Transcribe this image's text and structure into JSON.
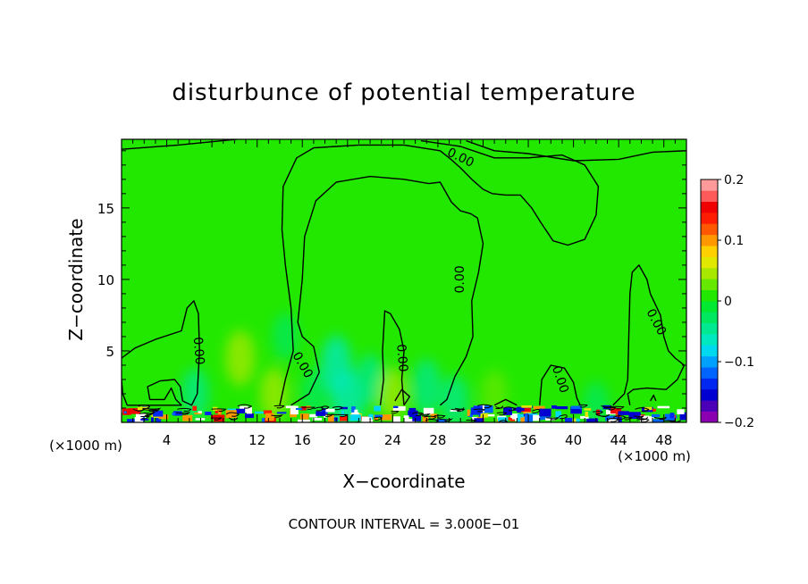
{
  "chart_data": {
    "type": "heatmap",
    "title": "disturbunce of potential temperature",
    "xlabel": "X−coordinate",
    "ylabel": "Z−coordinate",
    "x_unit_left": "(×1000 m)",
    "x_unit_right": "(×1000 m)",
    "xlim": [
      0,
      50
    ],
    "ylim": [
      0,
      19.8
    ],
    "x_ticks": [
      4,
      8,
      12,
      16,
      20,
      24,
      28,
      32,
      36,
      40,
      44,
      48
    ],
    "y_ticks": [
      5,
      10,
      15
    ],
    "contour_label": "0.00",
    "contour_interval_text": "CONTOUR INTERVAL = 3.000E−01",
    "colorbar": {
      "min": -0.2,
      "max": 0.2,
      "tick_values": [
        0.2,
        0.1,
        0,
        -0.1,
        -0.2
      ],
      "tick_labels": [
        "0.2",
        "0.1",
        "0",
        "−0.1",
        "−0.2"
      ],
      "colors": [
        "#8b00b0",
        "#4b00b8",
        "#0000d0",
        "#0028f0",
        "#0064ff",
        "#00a0ff",
        "#00d8f0",
        "#00e8c0",
        "#00e890",
        "#00e860",
        "#00e830",
        "#22e800",
        "#66e800",
        "#a8e800",
        "#e0e800",
        "#ffd000",
        "#ff9800",
        "#ff5800",
        "#ff1c00",
        "#f00000",
        "#ff5a5a",
        "#ff9a9a"
      ]
    },
    "background_value": 0.01,
    "blobs": [
      {
        "x": 6.5,
        "z": 2.0,
        "value": -0.04
      },
      {
        "x": 10.5,
        "z": 4.5,
        "value": 0.05
      },
      {
        "x": 13.5,
        "z": 2.0,
        "value": 0.04
      },
      {
        "x": 14.5,
        "z": 6.0,
        "value": -0.03
      },
      {
        "x": 19.0,
        "z": 4.0,
        "value": -0.06
      },
      {
        "x": 20.0,
        "z": 1.5,
        "value": -0.07
      },
      {
        "x": 17.0,
        "z": 2.0,
        "value": -0.03
      },
      {
        "x": 22.0,
        "z": 3.0,
        "value": -0.04
      },
      {
        "x": 24.0,
        "z": 2.0,
        "value": 0.04
      },
      {
        "x": 27.0,
        "z": 2.5,
        "value": -0.05
      },
      {
        "x": 29.5,
        "z": 1.5,
        "value": -0.04
      },
      {
        "x": 33.0,
        "z": 2.0,
        "value": 0.03
      },
      {
        "x": 42.0,
        "z": 1.2,
        "value": -0.03
      }
    ],
    "contours": [
      [
        [
          0.0,
          19.1
        ],
        [
          5.0,
          19.4
        ],
        [
          10.2,
          19.8
        ]
      ],
      [
        [
          0.0,
          4.5
        ],
        [
          1.2,
          5.2
        ],
        [
          3.0,
          5.8
        ],
        [
          5.3,
          6.4
        ],
        [
          5.8,
          8.0
        ],
        [
          6.4,
          8.5
        ],
        [
          6.8,
          7.6
        ],
        [
          6.9,
          5.0
        ],
        [
          6.7,
          2.0
        ],
        [
          6.2,
          1.2
        ],
        [
          5.4,
          1.5
        ],
        [
          5.2,
          2.5
        ],
        [
          4.7,
          3.0
        ],
        [
          3.4,
          2.9
        ],
        [
          2.3,
          2.5
        ],
        [
          2.5,
          1.6
        ],
        [
          3.8,
          1.6
        ],
        [
          4.4,
          2.4
        ],
        [
          4.8,
          1.6
        ],
        [
          5.3,
          1.2
        ],
        [
          0.5,
          1.2
        ],
        [
          0.1,
          2.0
        ],
        [
          0.0,
          3.0
        ]
      ],
      [
        [
          14.0,
          1.2
        ],
        [
          14.5,
          3.0
        ],
        [
          15.2,
          5.0
        ],
        [
          15.0,
          8.0
        ],
        [
          14.5,
          11.0
        ],
        [
          14.2,
          13.5
        ],
        [
          14.3,
          16.5
        ],
        [
          15.5,
          18.5
        ],
        [
          17.0,
          19.2
        ],
        [
          21.0,
          19.4
        ],
        [
          25.0,
          19.4
        ],
        [
          28.2,
          19.0
        ],
        [
          29.0,
          18.5
        ],
        [
          30.0,
          17.8
        ],
        [
          31.0,
          17.0
        ],
        [
          32.0,
          16.3
        ],
        [
          32.8,
          16.0
        ],
        [
          34.0,
          15.9
        ],
        [
          35.3,
          15.9
        ],
        [
          36.3,
          15.0
        ],
        [
          37.1,
          14.0
        ],
        [
          38.2,
          12.7
        ],
        [
          39.5,
          12.4
        ],
        [
          41.0,
          12.8
        ],
        [
          42.0,
          14.5
        ],
        [
          42.2,
          16.5
        ],
        [
          41.0,
          18.0
        ],
        [
          39.0,
          18.7
        ],
        [
          36.0,
          18.5
        ],
        [
          33.0,
          18.5
        ],
        [
          30.0,
          19.3
        ],
        [
          26.5,
          19.7
        ]
      ],
      [
        [
          30.5,
          19.7
        ],
        [
          33.0,
          19.0
        ],
        [
          36.0,
          18.8
        ],
        [
          40.0,
          18.3
        ],
        [
          44.0,
          18.4
        ],
        [
          47.0,
          18.9
        ],
        [
          50.0,
          19.0
        ]
      ],
      [
        [
          15.0,
          1.2
        ],
        [
          16.6,
          2.0
        ],
        [
          17.5,
          3.5
        ],
        [
          17.0,
          5.3
        ],
        [
          16.0,
          6.0
        ],
        [
          15.6,
          7.0
        ],
        [
          16.0,
          10.0
        ],
        [
          16.2,
          13.0
        ],
        [
          17.2,
          15.5
        ],
        [
          19.0,
          16.8
        ],
        [
          22.0,
          17.2
        ],
        [
          25.0,
          17.0
        ],
        [
          27.2,
          16.7
        ],
        [
          28.2,
          16.8
        ],
        [
          29.2,
          15.4
        ],
        [
          30.0,
          14.8
        ],
        [
          30.9,
          14.6
        ],
        [
          31.5,
          14.3
        ],
        [
          32.0,
          12.5
        ],
        [
          31.6,
          10.5
        ],
        [
          31.0,
          8.5
        ],
        [
          31.1,
          6.0
        ],
        [
          30.5,
          4.6
        ],
        [
          29.5,
          3.2
        ],
        [
          28.8,
          1.6
        ],
        [
          28.2,
          1.2
        ]
      ],
      [
        [
          22.9,
          1.2
        ],
        [
          23.2,
          3.0
        ],
        [
          23.1,
          5.0
        ],
        [
          23.3,
          7.8
        ],
        [
          23.8,
          7.6
        ],
        [
          24.6,
          6.5
        ],
        [
          25.0,
          5.0
        ],
        [
          24.8,
          3.0
        ],
        [
          25.0,
          1.2
        ]
      ],
      [
        [
          24.2,
          1.5
        ],
        [
          24.8,
          2.3
        ],
        [
          25.5,
          1.8
        ],
        [
          25.0,
          1.2
        ]
      ],
      [
        [
          37.0,
          1.2
        ],
        [
          37.2,
          3.0
        ],
        [
          38.0,
          4.0
        ],
        [
          39.2,
          3.8
        ],
        [
          40.0,
          2.8
        ],
        [
          40.3,
          1.7
        ],
        [
          40.6,
          1.2
        ]
      ],
      [
        [
          45.0,
          1.2
        ],
        [
          44.8,
          2.0
        ],
        [
          45.3,
          2.3
        ],
        [
          46.5,
          2.4
        ],
        [
          48.2,
          2.3
        ],
        [
          49.2,
          3.0
        ],
        [
          49.8,
          4.0
        ],
        [
          49.0,
          4.5
        ],
        [
          48.4,
          5.0
        ],
        [
          48.0,
          6.0
        ],
        [
          47.7,
          7.5
        ],
        [
          46.8,
          9.0
        ],
        [
          46.5,
          10.0
        ],
        [
          45.8,
          11.0
        ],
        [
          45.2,
          10.5
        ],
        [
          45.0,
          9.0
        ],
        [
          44.9,
          6.0
        ],
        [
          44.8,
          3.0
        ],
        [
          44.5,
          2.0
        ],
        [
          43.5,
          1.2
        ]
      ],
      [
        [
          46.8,
          1.5
        ],
        [
          47.1,
          1.9
        ],
        [
          47.3,
          1.5
        ]
      ],
      [
        [
          33.0,
          1.2
        ],
        [
          34.0,
          1.6
        ],
        [
          35.0,
          1.2
        ]
      ]
    ],
    "contour_label_positions": [
      {
        "x": 30.0,
        "z": 18.5,
        "rot": 26
      },
      {
        "x": 30.0,
        "z": 10.0,
        "rot": -90
      },
      {
        "x": 6.8,
        "z": 5.0,
        "rot": 85
      },
      {
        "x": 16.0,
        "z": 4.0,
        "rot": 60
      },
      {
        "x": 24.8,
        "z": 4.5,
        "rot": 85
      },
      {
        "x": 38.8,
        "z": 3.0,
        "rot": 72
      },
      {
        "x": 47.3,
        "z": 7.0,
        "rot": 62
      }
    ]
  }
}
